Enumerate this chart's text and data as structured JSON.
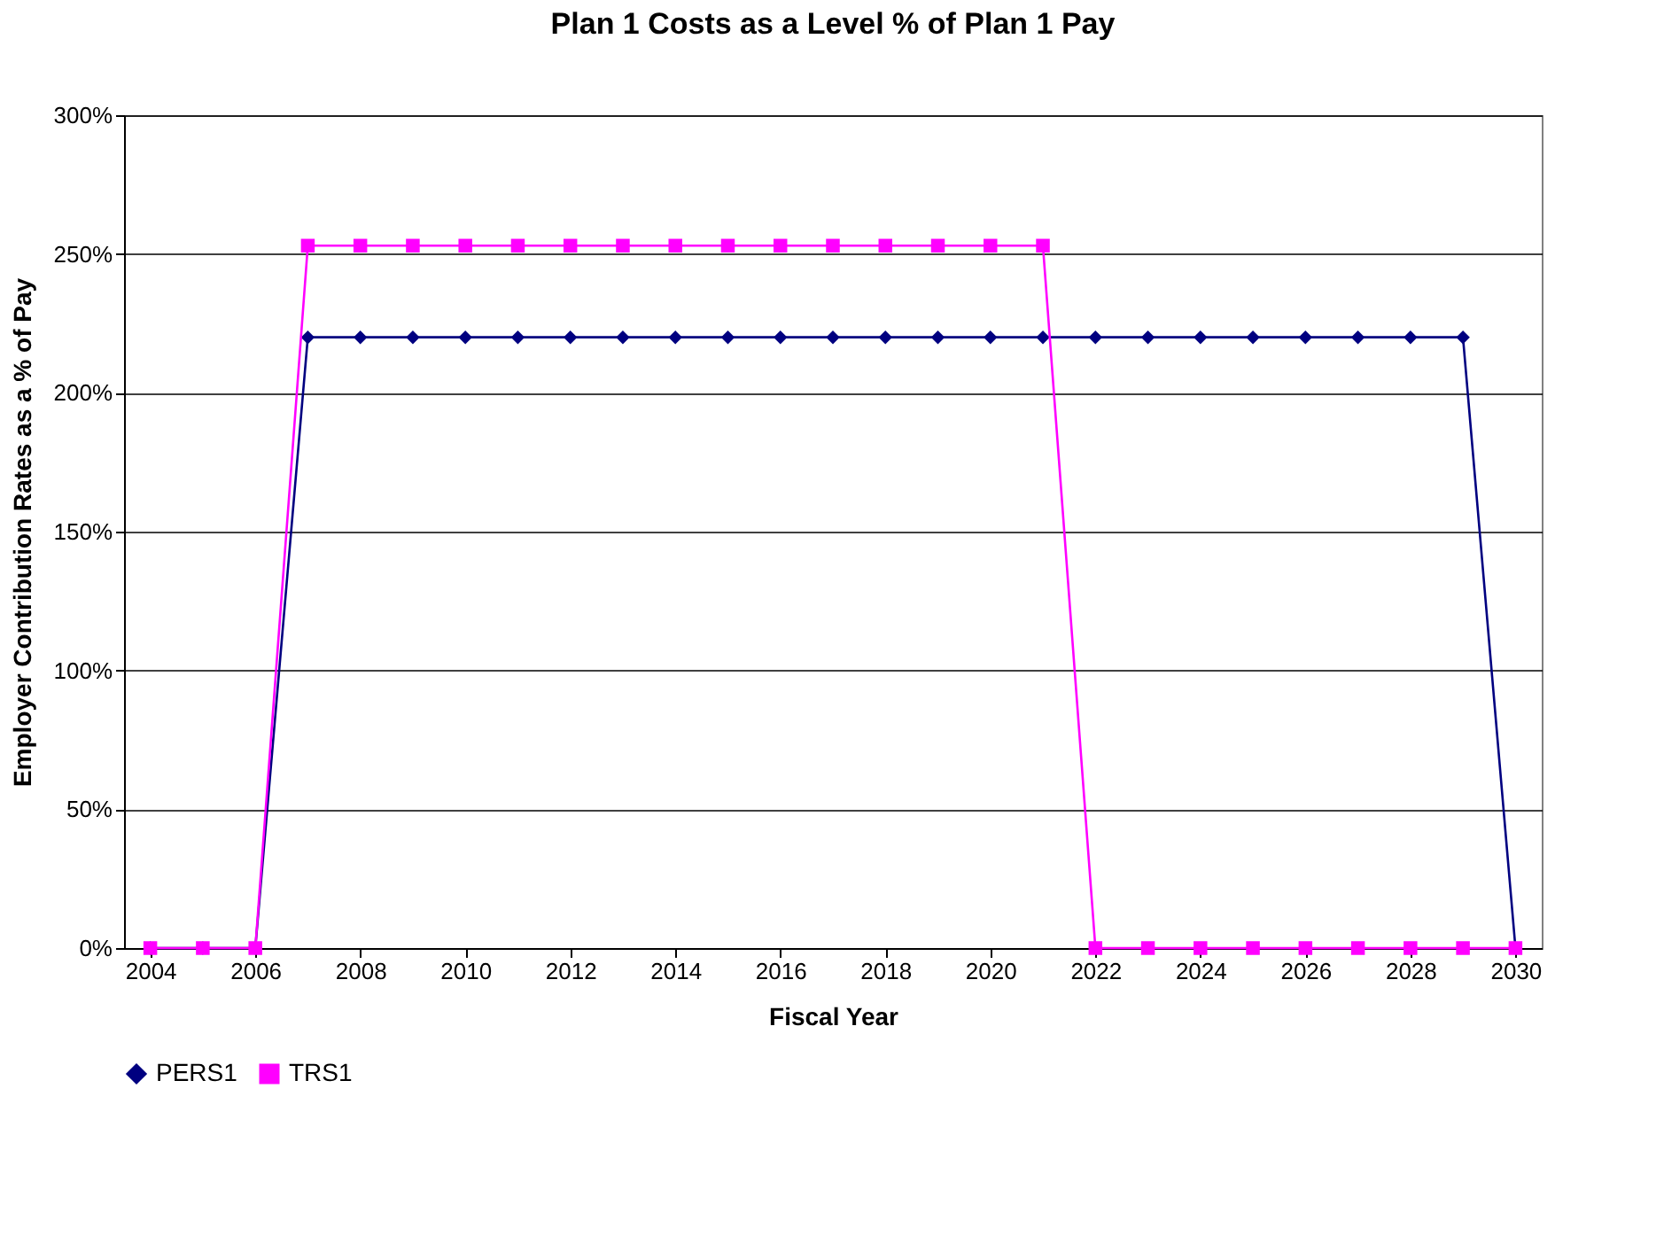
{
  "chart_data": {
    "type": "line",
    "title": "Plan 1 Costs as a Level % of Plan 1 Pay",
    "xlabel": "Fiscal Year",
    "ylabel": "Employer Contribution Rates as a % of Pay",
    "x": [
      2004,
      2005,
      2006,
      2007,
      2008,
      2009,
      2010,
      2011,
      2012,
      2013,
      2014,
      2015,
      2016,
      2017,
      2018,
      2019,
      2020,
      2021,
      2022,
      2023,
      2024,
      2025,
      2026,
      2027,
      2028,
      2029,
      2030
    ],
    "series": [
      {
        "name": "PERS1",
        "color": "#000080",
        "marker": "diamond",
        "values": [
          0,
          0,
          0,
          220,
          220,
          220,
          220,
          220,
          220,
          220,
          220,
          220,
          220,
          220,
          220,
          220,
          220,
          220,
          220,
          220,
          220,
          220,
          220,
          220,
          220,
          220,
          0
        ]
      },
      {
        "name": "TRS1",
        "color": "#ff00ff",
        "marker": "square",
        "values": [
          0,
          0,
          0,
          253,
          253,
          253,
          253,
          253,
          253,
          253,
          253,
          253,
          253,
          253,
          253,
          253,
          253,
          253,
          0,
          0,
          0,
          0,
          0,
          0,
          0,
          0,
          0
        ]
      }
    ],
    "xlim": [
      2003.5,
      2030.5
    ],
    "xticks": [
      2004,
      2006,
      2008,
      2010,
      2012,
      2014,
      2016,
      2018,
      2020,
      2022,
      2024,
      2026,
      2028,
      2030
    ],
    "ylim": [
      0,
      300
    ],
    "yticks": [
      {
        "value": 0,
        "label": "0%"
      },
      {
        "value": 50,
        "label": "50%"
      },
      {
        "value": 100,
        "label": "100%"
      },
      {
        "value": 150,
        "label": "150%"
      },
      {
        "value": 200,
        "label": "200%"
      },
      {
        "value": 250,
        "label": "250%"
      },
      {
        "value": 300,
        "label": "300%"
      }
    ],
    "grid": "y",
    "legend": "bottom",
    "line_style": "solid"
  }
}
